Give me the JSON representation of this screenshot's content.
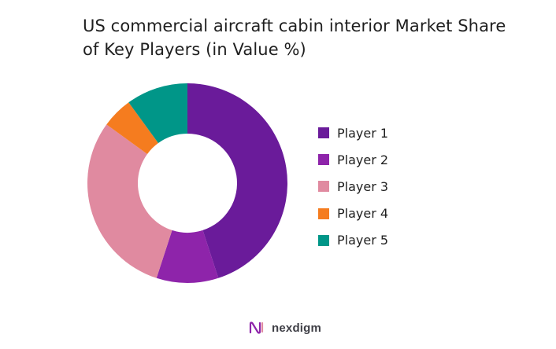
{
  "chart_data": {
    "type": "pie",
    "title": "US commercial aircraft cabin interior Market Share of Key Players (in Value %)",
    "donut": true,
    "legend_position": "right",
    "categories": [
      "Player 1",
      "Player 2",
      "Player 3",
      "Player 4",
      "Player 5"
    ],
    "values": [
      45,
      10,
      30,
      5,
      10
    ],
    "colors": [
      "#6A1B9A",
      "#8E24AA",
      "#E08AA0",
      "#F57C1F",
      "#009688"
    ]
  },
  "brand": {
    "name": "nexdigm",
    "logo_icon": "nexdigm-logo-icon"
  }
}
